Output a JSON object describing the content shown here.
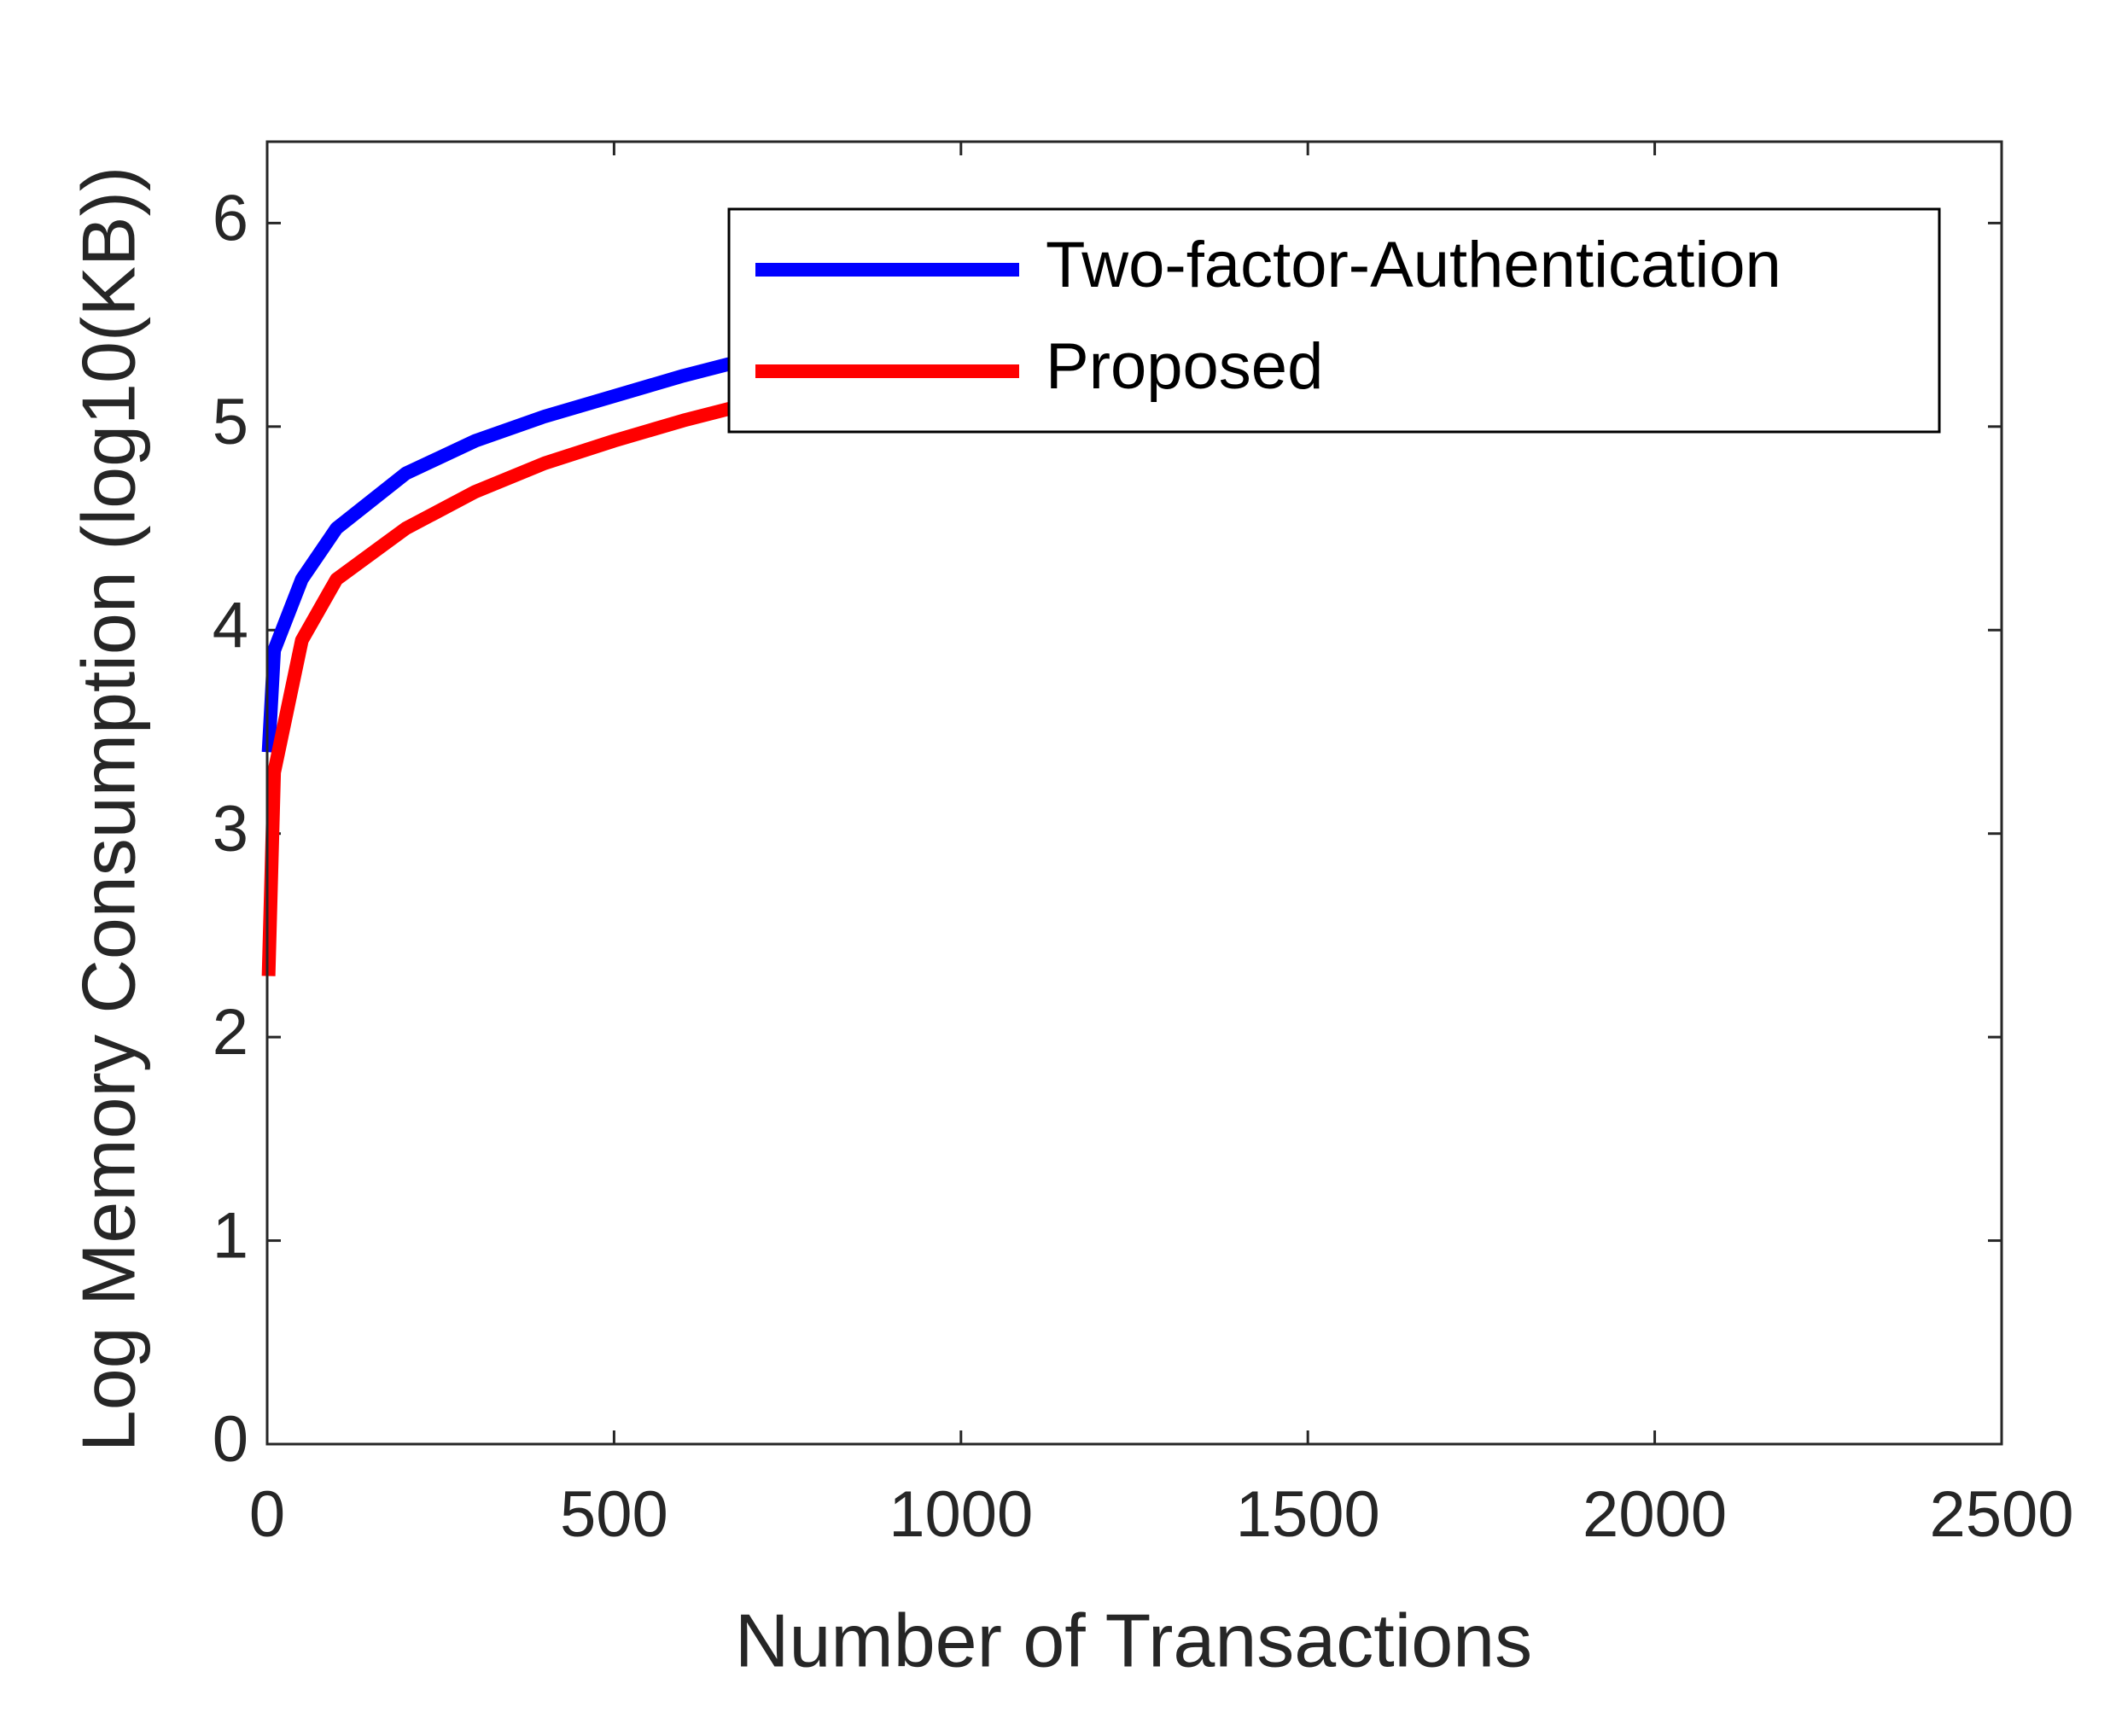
{
  "chart_data": {
    "type": "line",
    "xlabel": "Number of Transactions",
    "ylabel": "Log Memory Consumption (log10(KB))",
    "x": [
      2,
      10,
      50,
      100,
      200,
      300,
      400,
      500,
      600,
      680
    ],
    "series": [
      {
        "name": "Two-factor-Authentication",
        "color": "#0000ff",
        "values": [
          3.4,
          3.9,
          4.25,
          4.5,
          4.77,
          4.93,
          5.05,
          5.15,
          5.25,
          5.32
        ]
      },
      {
        "name": "Proposed",
        "color": "#ff0000",
        "values": [
          2.3,
          3.3,
          3.95,
          4.25,
          4.5,
          4.68,
          4.82,
          4.93,
          5.03,
          5.1
        ]
      }
    ],
    "xlim": [
      0,
      2500
    ],
    "xticks": [
      0,
      500,
      1000,
      1500,
      2000,
      2500
    ],
    "ylim": [
      0,
      6.4
    ],
    "yticks": [
      0,
      1,
      2,
      3,
      4,
      5,
      6
    ],
    "legend": "upper right",
    "grid": false
  }
}
